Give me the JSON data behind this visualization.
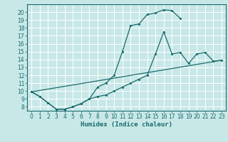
{
  "xlabel": "Humidex (Indice chaleur)",
  "bg_color": "#c8e8e8",
  "line_color": "#1a6b6b",
  "grid_color": "#ffffff",
  "xlim": [
    -0.5,
    23.5
  ],
  "ylim": [
    7.5,
    21.0
  ],
  "xticks": [
    0,
    1,
    2,
    3,
    4,
    5,
    6,
    7,
    8,
    9,
    10,
    11,
    12,
    13,
    14,
    15,
    16,
    17,
    18,
    19,
    20,
    21,
    22,
    23
  ],
  "yticks": [
    8,
    9,
    10,
    11,
    12,
    13,
    14,
    15,
    16,
    17,
    18,
    19,
    20
  ],
  "curve1_x": [
    0,
    1,
    2,
    3,
    4,
    5,
    6,
    7,
    8,
    9,
    10,
    11,
    12,
    13,
    14,
    15,
    16,
    17,
    18
  ],
  "curve1_y": [
    9.9,
    9.3,
    8.5,
    7.7,
    7.7,
    8.0,
    8.4,
    9.0,
    10.5,
    11.0,
    12.0,
    15.0,
    18.3,
    18.5,
    19.7,
    19.9,
    20.3,
    20.2,
    19.2
  ],
  "curve2_x": [
    0,
    1,
    2,
    3,
    4,
    5,
    6,
    7,
    8,
    9,
    10,
    11,
    12,
    13,
    14,
    15,
    16,
    17,
    18,
    19,
    20,
    21,
    22,
    23
  ],
  "curve2_y": [
    9.9,
    9.3,
    8.5,
    7.7,
    7.7,
    8.0,
    8.4,
    9.0,
    9.3,
    9.5,
    10.0,
    10.5,
    11.0,
    11.5,
    12.0,
    14.7,
    17.5,
    14.7,
    14.9,
    13.5,
    14.7,
    14.9,
    13.8,
    13.9
  ],
  "curve3_x": [
    0,
    23
  ],
  "curve3_y": [
    9.9,
    13.9
  ]
}
